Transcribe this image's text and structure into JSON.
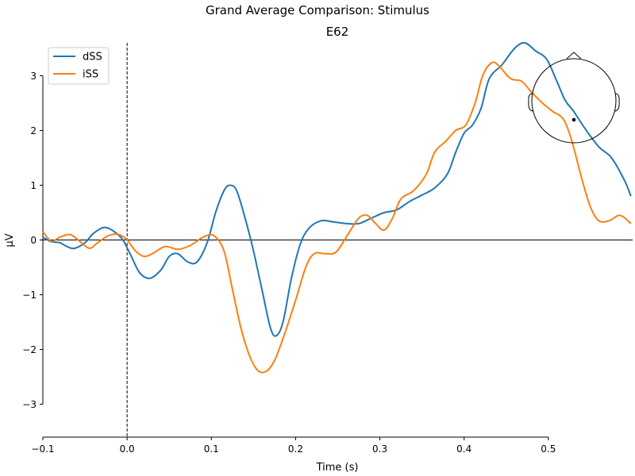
{
  "chart_data": {
    "type": "line",
    "suptitle": "Grand Average Comparison: Stimulus",
    "title": "E62",
    "xlabel": "Time (s)",
    "ylabel": "µV",
    "xlim": [
      -0.1,
      0.6
    ],
    "ylim": [
      -3.6,
      3.6
    ],
    "x_spine_range": [
      -0.1,
      0.5
    ],
    "y_spine_range": [
      -3,
      3
    ],
    "xticks": [
      -0.1,
      0.0,
      0.1,
      0.2,
      0.3,
      0.4,
      0.5
    ],
    "xtick_labels": [
      "−0.1",
      "0.0",
      "0.1",
      "0.2",
      "0.3",
      "0.4",
      "0.5"
    ],
    "yticks": [
      -3,
      -2,
      -1,
      0,
      1,
      2,
      3
    ],
    "ytick_labels": [
      "−3",
      "−2",
      "−1",
      "0",
      "1",
      "2",
      "3"
    ],
    "stimulus_onset": 0.0,
    "zero_line": 0,
    "grid": false,
    "legend": {
      "position": "top-left"
    },
    "sensor_inset": {
      "position": "top-right",
      "sensor_name": "E62",
      "sensor_dot": [
        0.0,
        -0.45
      ]
    },
    "series": [
      {
        "name": "dSS",
        "color": "#1f77b4",
        "points": [
          [
            -0.1,
            0.05
          ],
          [
            -0.09,
            -0.03
          ],
          [
            -0.08,
            -0.05
          ],
          [
            -0.07,
            -0.13
          ],
          [
            -0.062,
            -0.15
          ],
          [
            -0.05,
            -0.05
          ],
          [
            -0.04,
            0.12
          ],
          [
            -0.027,
            0.23
          ],
          [
            -0.015,
            0.15
          ],
          [
            -0.005,
            0.0
          ],
          [
            0.005,
            -0.3
          ],
          [
            0.015,
            -0.6
          ],
          [
            0.027,
            -0.7
          ],
          [
            0.04,
            -0.55
          ],
          [
            0.05,
            -0.3
          ],
          [
            0.06,
            -0.25
          ],
          [
            0.072,
            -0.4
          ],
          [
            0.083,
            -0.4
          ],
          [
            0.095,
            -0.05
          ],
          [
            0.105,
            0.5
          ],
          [
            0.115,
            0.9
          ],
          [
            0.122,
            1.0
          ],
          [
            0.13,
            0.9
          ],
          [
            0.14,
            0.4
          ],
          [
            0.15,
            -0.2
          ],
          [
            0.16,
            -0.9
          ],
          [
            0.17,
            -1.6
          ],
          [
            0.177,
            -1.75
          ],
          [
            0.185,
            -1.5
          ],
          [
            0.195,
            -0.7
          ],
          [
            0.205,
            -0.1
          ],
          [
            0.215,
            0.2
          ],
          [
            0.23,
            0.35
          ],
          [
            0.245,
            0.33
          ],
          [
            0.26,
            0.3
          ],
          [
            0.275,
            0.3
          ],
          [
            0.29,
            0.4
          ],
          [
            0.305,
            0.5
          ],
          [
            0.32,
            0.55
          ],
          [
            0.335,
            0.7
          ],
          [
            0.35,
            0.82
          ],
          [
            0.365,
            0.95
          ],
          [
            0.38,
            1.2
          ],
          [
            0.39,
            1.6
          ],
          [
            0.4,
            1.95
          ],
          [
            0.41,
            2.1
          ],
          [
            0.42,
            2.4
          ],
          [
            0.43,
            2.95
          ],
          [
            0.445,
            3.2
          ],
          [
            0.46,
            3.5
          ],
          [
            0.472,
            3.6
          ],
          [
            0.485,
            3.45
          ],
          [
            0.498,
            3.3
          ],
          [
            0.51,
            2.9
          ],
          [
            0.52,
            2.55
          ],
          [
            0.53,
            2.35
          ],
          [
            0.545,
            2.0
          ],
          [
            0.56,
            1.7
          ],
          [
            0.575,
            1.5
          ],
          [
            0.59,
            1.1
          ],
          [
            0.598,
            0.8
          ]
        ]
      },
      {
        "name": "iSS",
        "color": "#ff7f0e",
        "points": [
          [
            -0.1,
            0.15
          ],
          [
            -0.09,
            -0.02
          ],
          [
            -0.08,
            0.05
          ],
          [
            -0.068,
            0.1
          ],
          [
            -0.058,
            0.0
          ],
          [
            -0.045,
            -0.15
          ],
          [
            -0.035,
            -0.05
          ],
          [
            -0.022,
            0.08
          ],
          [
            -0.01,
            0.1
          ],
          [
            0.0,
            0.0
          ],
          [
            0.01,
            -0.2
          ],
          [
            0.02,
            -0.3
          ],
          [
            0.03,
            -0.25
          ],
          [
            0.045,
            -0.12
          ],
          [
            0.06,
            -0.17
          ],
          [
            0.075,
            -0.1
          ],
          [
            0.09,
            0.05
          ],
          [
            0.103,
            0.08
          ],
          [
            0.115,
            -0.2
          ],
          [
            0.125,
            -0.9
          ],
          [
            0.135,
            -1.6
          ],
          [
            0.145,
            -2.1
          ],
          [
            0.155,
            -2.38
          ],
          [
            0.165,
            -2.4
          ],
          [
            0.175,
            -2.2
          ],
          [
            0.185,
            -1.8
          ],
          [
            0.2,
            -1.1
          ],
          [
            0.212,
            -0.5
          ],
          [
            0.222,
            -0.25
          ],
          [
            0.235,
            -0.25
          ],
          [
            0.248,
            -0.22
          ],
          [
            0.262,
            0.1
          ],
          [
            0.275,
            0.4
          ],
          [
            0.285,
            0.45
          ],
          [
            0.295,
            0.3
          ],
          [
            0.305,
            0.18
          ],
          [
            0.315,
            0.4
          ],
          [
            0.325,
            0.75
          ],
          [
            0.34,
            0.9
          ],
          [
            0.355,
            1.2
          ],
          [
            0.365,
            1.6
          ],
          [
            0.378,
            1.8
          ],
          [
            0.39,
            2.0
          ],
          [
            0.402,
            2.1
          ],
          [
            0.413,
            2.5
          ],
          [
            0.422,
            3.0
          ],
          [
            0.432,
            3.23
          ],
          [
            0.44,
            3.2
          ],
          [
            0.455,
            2.95
          ],
          [
            0.468,
            2.9
          ],
          [
            0.48,
            2.7
          ],
          [
            0.493,
            2.5
          ],
          [
            0.505,
            2.35
          ],
          [
            0.518,
            2.2
          ],
          [
            0.528,
            1.8
          ],
          [
            0.54,
            1.1
          ],
          [
            0.55,
            0.6
          ],
          [
            0.56,
            0.35
          ],
          [
            0.572,
            0.35
          ],
          [
            0.585,
            0.45
          ],
          [
            0.598,
            0.3
          ]
        ]
      }
    ]
  }
}
